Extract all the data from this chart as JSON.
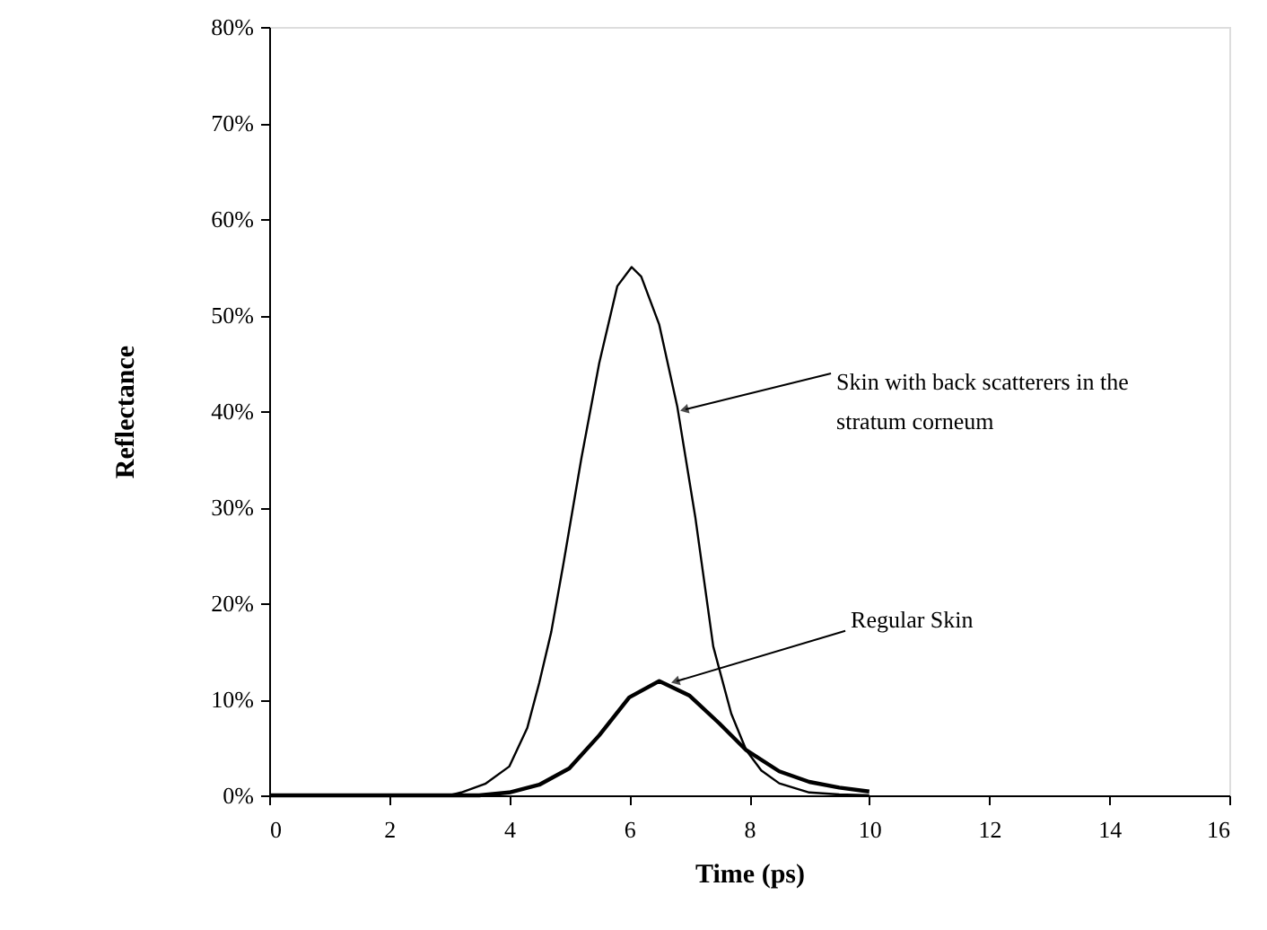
{
  "chart_data": {
    "type": "line",
    "xlabel": "Time (ps)",
    "ylabel": "Reflectance",
    "xlim": [
      0,
      16
    ],
    "xticks": [
      0,
      2,
      4,
      6,
      8,
      10,
      12,
      14,
      16
    ],
    "ylim": [
      0,
      80
    ],
    "yticks": [
      {
        "value": 0,
        "label": "0%"
      },
      {
        "value": 10,
        "label": "10%"
      },
      {
        "value": 20,
        "label": "20%"
      },
      {
        "value": 30,
        "label": "30%"
      },
      {
        "value": 40,
        "label": "40%"
      },
      {
        "value": 50,
        "label": "50%"
      },
      {
        "value": 60,
        "label": "60%"
      },
      {
        "value": 70,
        "label": "70%"
      },
      {
        "value": 80,
        "label": "80%"
      }
    ],
    "grid": false,
    "marker": "none",
    "line_style": "solid",
    "series": [
      {
        "color": "#000000",
        "x": [
          0,
          3,
          3.2,
          3.6,
          4.0,
          4.3,
          4.5,
          4.7,
          4.9,
          5.2,
          5.5,
          5.8,
          6.04,
          6.2,
          6.5,
          6.8,
          7.1,
          7.4,
          7.7,
          7.95,
          8.2,
          8.5,
          9.0,
          9.5,
          10
        ],
        "values": [
          0,
          0,
          0.3,
          1.2,
          3,
          7,
          11.7,
          17,
          24,
          35,
          45,
          53,
          55,
          54,
          49,
          40.5,
          29,
          15.5,
          8.5,
          4.7,
          2.6,
          1.25,
          0.3,
          0.1,
          0
        ]
      },
      {
        "color": "#000000",
        "x": [
          0,
          3.5,
          4.0,
          4.5,
          5.0,
          5.5,
          6.0,
          6.5,
          7.0,
          7.5,
          7.95,
          8.5,
          9.0,
          9.5,
          10
        ],
        "values": [
          0,
          0,
          0.3,
          1.1,
          2.8,
          6.25,
          10.2,
          11.9,
          10.4,
          7.5,
          4.7,
          2.5,
          1.4,
          0.8,
          0.4
        ]
      }
    ],
    "annotations": [
      {
        "text": "Skin with back scatterers in the stratum corneum",
        "x": 6.85,
        "y": 40
      },
      {
        "text": "Regular Skin",
        "x": 6.7,
        "y": 11.7
      }
    ]
  }
}
